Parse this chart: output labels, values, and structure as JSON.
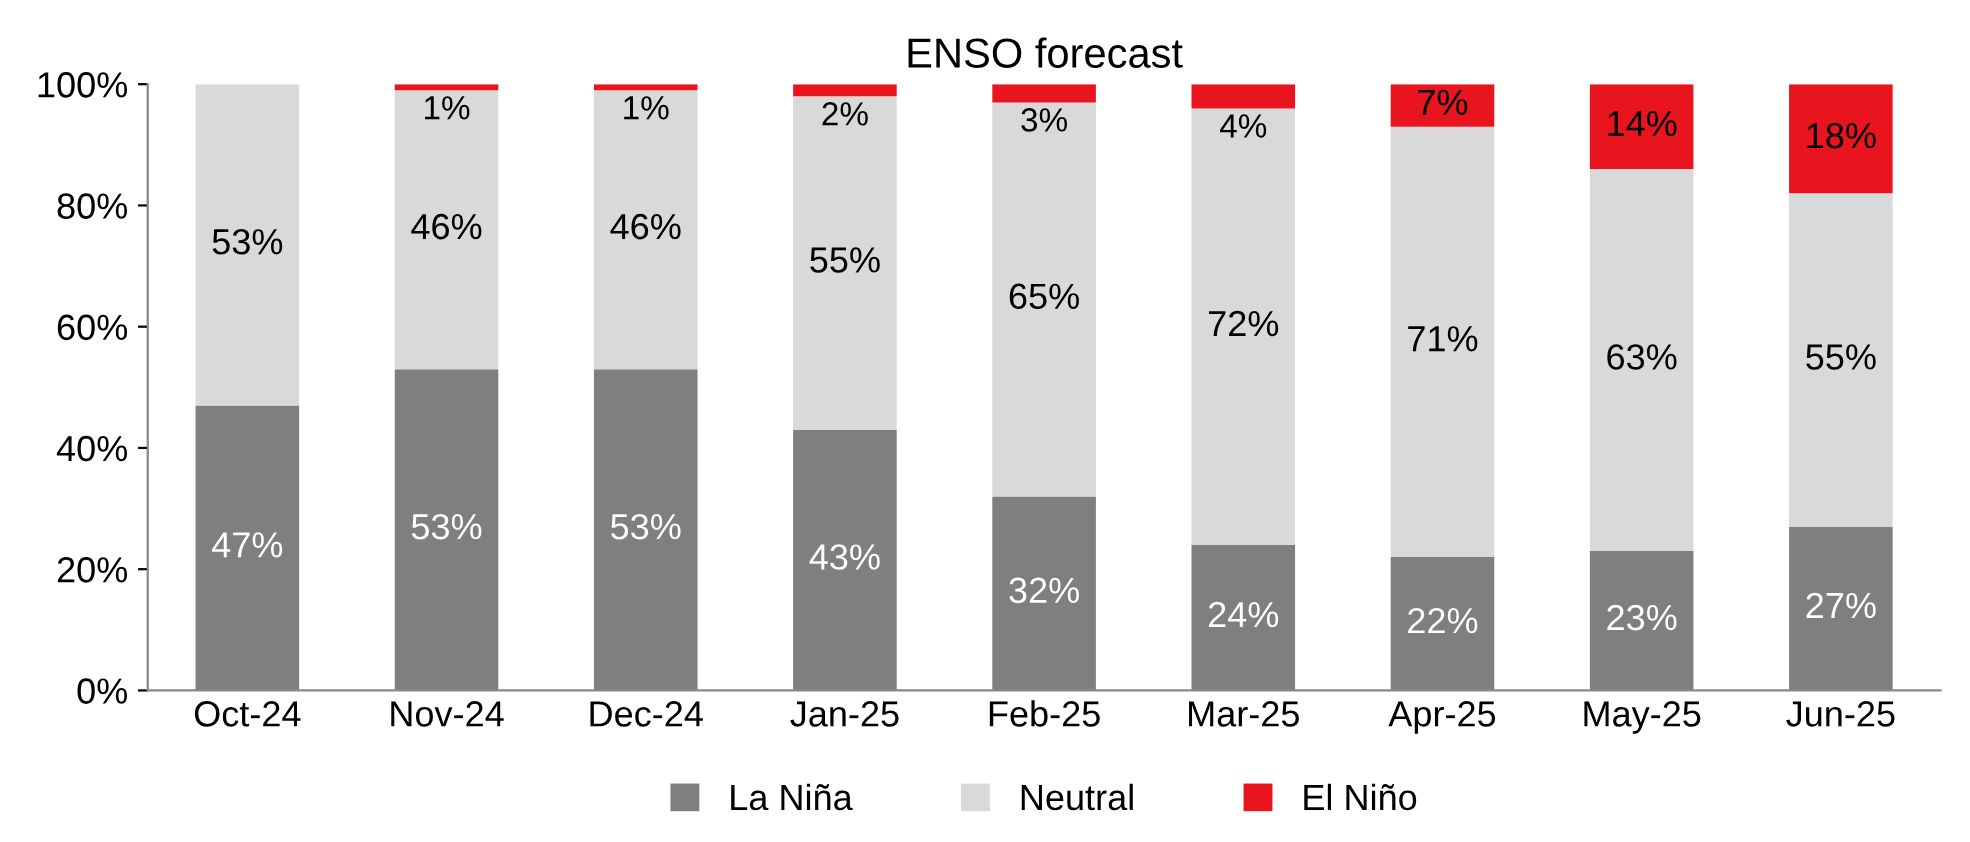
{
  "chart_data": {
    "type": "bar",
    "title": "ENSO forecast",
    "stacked": true,
    "categories": [
      "Oct-24",
      "Nov-24",
      "Dec-24",
      "Jan-25",
      "Feb-25",
      "Mar-25",
      "Apr-25",
      "May-25",
      "Jun-25"
    ],
    "series": [
      {
        "name": "La Niña",
        "color": "#7f7f7f",
        "values": [
          47,
          53,
          53,
          43,
          32,
          24,
          22,
          23,
          27
        ],
        "value_labels": [
          "47%",
          "53%",
          "53%",
          "43%",
          "32%",
          "24%",
          "22%",
          "23%",
          "27%"
        ]
      },
      {
        "name": "Neutral",
        "color": "#d9d9d9",
        "values": [
          53,
          46,
          46,
          55,
          65,
          72,
          71,
          63,
          55
        ],
        "value_labels": [
          "53%",
          "46%",
          "46%",
          "55%",
          "65%",
          "72%",
          "71%",
          "63%",
          "55%"
        ]
      },
      {
        "name": "El Niño",
        "color": "#e8141e",
        "values": [
          null,
          1,
          1,
          2,
          3,
          4,
          7,
          14,
          18
        ],
        "value_labels": [
          null,
          "1%",
          "1%",
          "2%",
          "3%",
          "4%",
          "7%",
          "14%",
          "18%"
        ]
      }
    ],
    "ylim": [
      0,
      100
    ],
    "yticks": [
      {
        "value": 0,
        "label": "0%"
      },
      {
        "value": 20,
        "label": "20%"
      },
      {
        "value": 40,
        "label": "40%"
      },
      {
        "value": 60,
        "label": "60%"
      },
      {
        "value": 80,
        "label": "80%"
      },
      {
        "value": 100,
        "label": "100%"
      }
    ],
    "legend": "bottom",
    "grid": false
  }
}
